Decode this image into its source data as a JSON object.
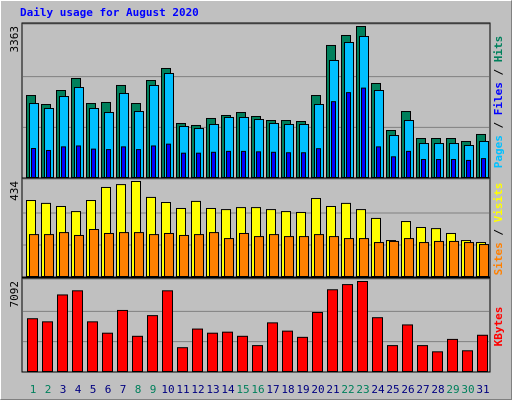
{
  "chart_data": {
    "type": "bar",
    "title": "Daily usage for August 2020",
    "categories": [
      "1",
      "2",
      "3",
      "4",
      "5",
      "6",
      "7",
      "8",
      "9",
      "10",
      "11",
      "12",
      "13",
      "14",
      "15",
      "16",
      "17",
      "18",
      "19",
      "20",
      "21",
      "22",
      "23",
      "24",
      "25",
      "26",
      "27",
      "28",
      "29",
      "30",
      "31"
    ],
    "category_colors": [
      "#00805c",
      "#00805c",
      "#000080",
      "#000080",
      "#000080",
      "#000080",
      "#000080",
      "#00805c",
      "#00805c",
      "#000080",
      "#000080",
      "#000080",
      "#000080",
      "#000080",
      "#00805c",
      "#00805c",
      "#000080",
      "#000080",
      "#000080",
      "#000080",
      "#000080",
      "#00805c",
      "#00805c",
      "#000080",
      "#000080",
      "#000080",
      "#000080",
      "#000080",
      "#00805c",
      "#00805c",
      "#000080"
    ],
    "legend_separator": " / ",
    "panels": [
      {
        "ylim": [
          0,
          3363
        ],
        "yticks": [
          3363
        ],
        "series": [
          {
            "name": "Pages",
            "color": "#00c0ff",
            "values": [
              1659,
              1549,
              1814,
              2013,
              1549,
              1460,
              1881,
              1482,
              2058,
              2323,
              1151,
              1106,
              1195,
              1350,
              1350,
              1305,
              1217,
              1195,
              1195,
              1637,
              2611,
              3009,
              3142,
              1947,
              951,
              1283,
              774,
              774,
              774,
              730,
              819
            ]
          },
          {
            "name": "Files",
            "color": "#0000ff",
            "values": [
              664,
              620,
              700,
              720,
              650,
              640,
              700,
              640,
              720,
              760,
              560,
              560,
              580,
              600,
              600,
              590,
              580,
              570,
              570,
              660,
              1700,
              1900,
              2000,
              700,
              480,
              600,
              420,
              420,
              420,
              400,
              440
            ]
          },
          {
            "name": "Hits",
            "color": "#00805c",
            "values": [
              1836,
              1637,
              1947,
              2213,
              1659,
              1682,
              2058,
              1659,
              2168,
              2434,
              1217,
              1173,
              1328,
              1394,
              1460,
              1372,
              1283,
              1283,
              1261,
              1836,
              2943,
              3164,
              3363,
              2102,
              1062,
              1482,
              885,
              885,
              885,
              819,
              974
            ]
          }
        ]
      },
      {
        "ylim": [
          0,
          434
        ],
        "yticks": [
          434
        ],
        "series": [
          {
            "name": "Sites",
            "color": "#ff8000",
            "values": [
              194,
              194,
              203,
              190,
              217,
              199,
              203,
              203,
              194,
              199,
              190,
              194,
              203,
              176,
              199,
              185,
              194,
              185,
              185,
              194,
              185,
              176,
              176,
              158,
              163,
              176,
              158,
              163,
              163,
              158,
              149
            ]
          },
          {
            "name": "Visits",
            "color": "#ffff00",
            "values": [
              348,
              335,
              321,
              298,
              348,
              407,
              420,
              434,
              362,
              339,
              312,
              344,
              312,
              307,
              316,
              316,
              307,
              298,
              294,
              357,
              321,
              335,
              307,
              267,
              167,
              253,
              226,
              221,
              199,
              167,
              158
            ]
          }
        ]
      },
      {
        "ylim": [
          0,
          7092
        ],
        "yticks": [
          7092
        ],
        "series": [
          {
            "name": "KBytes",
            "color": "#ff0000",
            "values": [
              4191,
              3949,
              6045,
              6367,
              3949,
              3063,
              4836,
              2821,
              4433,
              6367,
              1934,
              3385,
              3063,
              3143,
              2821,
              2096,
              3869,
              3224,
              2740,
              4675,
              6448,
              6851,
              7092,
              4272,
              2096,
              3708,
              2096,
              1612,
              2579,
              1693,
              2902
            ]
          }
        ]
      }
    ]
  }
}
